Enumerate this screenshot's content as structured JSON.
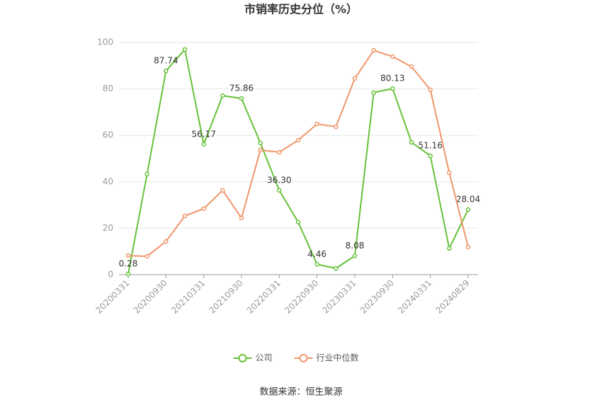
{
  "chart_data": {
    "type": "line",
    "title": "市销率历史分位（%）",
    "source": "数据来源：恒生聚源",
    "categories": [
      "20200331",
      null,
      "20200930",
      null,
      "20210331",
      null,
      "20210930",
      null,
      "20220331",
      null,
      "20220930",
      null,
      "20230331",
      null,
      "20230930",
      null,
      "20240331",
      null,
      "20240829"
    ],
    "series": [
      {
        "name": "公司",
        "color": "#66c23a",
        "values": [
          0.28,
          43.3,
          87.74,
          97.0,
          56.17,
          77.1,
          75.86,
          56.7,
          36.3,
          22.6,
          4.46,
          2.7,
          8.08,
          78.4,
          80.13,
          57.0,
          51.16,
          11.3,
          28.04
        ],
        "value_labels": [
          "0.28",
          null,
          "87.74",
          null,
          "56.17",
          null,
          "75.86",
          null,
          "36.30",
          null,
          "4.46",
          null,
          "8.08",
          null,
          "80.13",
          null,
          "51.16",
          null,
          "28.04"
        ]
      },
      {
        "name": "行业中位数",
        "color": "#f0956a",
        "values": [
          8.2,
          7.9,
          14.3,
          25.3,
          28.4,
          36.3,
          24.4,
          53.7,
          52.7,
          57.9,
          64.9,
          63.7,
          84.5,
          96.6,
          93.9,
          89.6,
          79.6,
          43.9,
          11.9
        ]
      }
    ],
    "ylim": [
      0,
      100
    ],
    "yticks": [
      0,
      20,
      40,
      60,
      80,
      100
    ],
    "grid": true,
    "legend": "bottom"
  }
}
